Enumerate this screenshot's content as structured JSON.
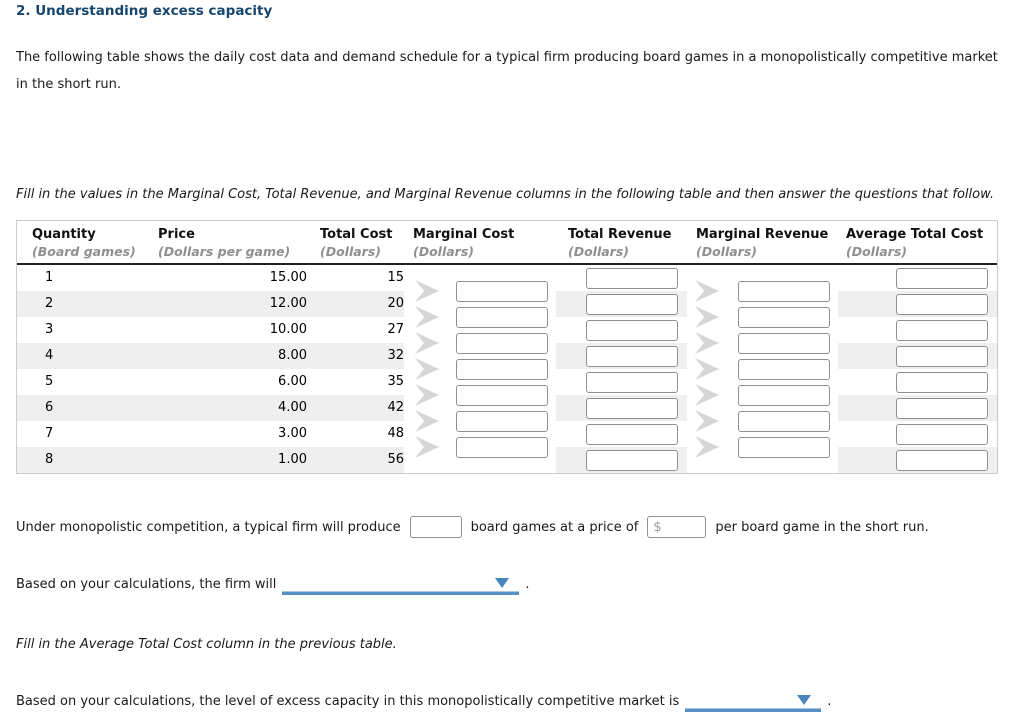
{
  "page": {
    "title": "2. Understanding excess capacity",
    "intro": "The following table shows the daily cost data and demand schedule for a typical firm producing board games in a monopolistically competitive market in the short run.",
    "instruction": "Fill in the values in the Marginal Cost, Total Revenue, and Marginal Revenue columns in the following table and then answer the questions that follow."
  },
  "table": {
    "columns": [
      {
        "label": "Quantity",
        "sub": "(Board games)"
      },
      {
        "label": "Price",
        "sub": "(Dollars per game)"
      },
      {
        "label": "Total Cost",
        "sub": "(Dollars)"
      },
      {
        "label": "Marginal Cost",
        "sub": "(Dollars)"
      },
      {
        "label": "Total Revenue",
        "sub": "(Dollars)"
      },
      {
        "label": "Marginal Revenue",
        "sub": "(Dollars)"
      },
      {
        "label": "Average Total Cost",
        "sub": "(Dollars)"
      }
    ],
    "rows": [
      {
        "quantity": "1",
        "price": "15.00",
        "total_cost": "15"
      },
      {
        "quantity": "2",
        "price": "12.00",
        "total_cost": "20"
      },
      {
        "quantity": "3",
        "price": "10.00",
        "total_cost": "27"
      },
      {
        "quantity": "4",
        "price": "8.00",
        "total_cost": "32"
      },
      {
        "quantity": "5",
        "price": "6.00",
        "total_cost": "35"
      },
      {
        "quantity": "6",
        "price": "4.00",
        "total_cost": "42"
      },
      {
        "quantity": "7",
        "price": "3.00",
        "total_cost": "48"
      },
      {
        "quantity": "8",
        "price": "1.00",
        "total_cost": "56"
      }
    ],
    "blank_value": ""
  },
  "question1": {
    "text_before": "Under monopolistic competition, a typical firm will produce",
    "quantity_value": "",
    "text_mid": "board games at a price of",
    "dollar_sign": "$",
    "price_value": "",
    "text_after": "per board game in the short run."
  },
  "question2": {
    "text": "Based on your calculations, the firm will",
    "selected_value": "",
    "period": "."
  },
  "note": {
    "text": "Fill in the Average Total Cost column in the previous table."
  },
  "question3": {
    "text": "Based on your calculations, the level of excess capacity in this monopolistically competitive market is",
    "selected_value": "",
    "period": "."
  },
  "colors": {
    "title_blue": "#17466f",
    "dropdown_line_blue": "#5590c6",
    "dropdown_arrow_blue": "#4a86be",
    "row_stripe_gray": "#efefef",
    "chevron_gray": "#d6d6d6",
    "subheader_gray": "#8f8f8f",
    "input_border_gray": "#8f8f8f"
  }
}
